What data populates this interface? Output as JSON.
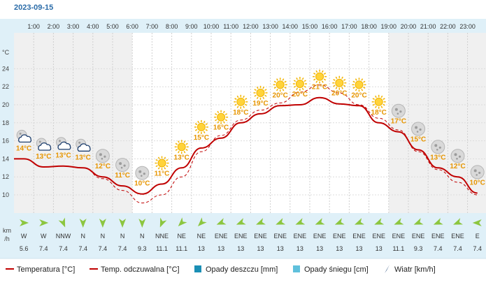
{
  "date": "2023-09-15",
  "colors": {
    "temperature": "#c00000",
    "feels_like": "#c00000",
    "label": "#e69500",
    "wind_arrow": "#8cc63f",
    "panel": "#dff0f8",
    "rain": "#1a8fb5",
    "snow": "#5fc0dc",
    "wind_legend": "#2c4f7c"
  },
  "chart_data": {
    "type": "line",
    "x": [
      "1:00",
      "2:00",
      "3:00",
      "4:00",
      "5:00",
      "6:00",
      "7:00",
      "8:00",
      "9:00",
      "10:00",
      "11:00",
      "12:00",
      "13:00",
      "14:00",
      "15:00",
      "16:00",
      "17:00",
      "18:00",
      "19:00",
      "20:00",
      "21:00",
      "22:00",
      "23:00"
    ],
    "ylabel": "°C",
    "yticks": [
      10,
      12,
      14,
      16,
      18,
      20,
      22,
      24
    ],
    "ylim": [
      8,
      26
    ],
    "temperature": [
      14,
      13.1,
      13.2,
      13,
      12,
      11,
      10.1,
      11.2,
      13,
      15.2,
      16.3,
      18,
      19,
      19.9,
      20,
      20.8,
      20.1,
      19.9,
      18,
      17,
      15,
      13,
      12,
      10.2
    ],
    "feels_like": [
      14,
      13.1,
      13.2,
      13,
      11.8,
      10.5,
      9.1,
      10,
      12,
      14.8,
      16.6,
      18.3,
      19.4,
      20.2,
      21.4,
      22.2,
      21.3,
      20,
      18.5,
      17.2,
      14.8,
      12.8,
      11.4,
      10
    ],
    "labels": [
      "14°C",
      "13°C",
      "13°C",
      "13°C",
      "12°C",
      "11°C",
      "10°C",
      "11°C",
      "13°C",
      "15°C",
      "16°C",
      "18°C",
      "19°C",
      "20°C",
      "20°C",
      "21°C",
      "20°C",
      "20°C",
      "18°C",
      "17°C",
      "15°C",
      "13°C",
      "12°C",
      "10°C"
    ],
    "icons": [
      "partly-cloudy-night-icon",
      "partly-cloudy-night-icon",
      "partly-cloudy-night-icon",
      "partly-cloudy-night-icon",
      "moon-icon",
      "moon-icon",
      "moon-icon",
      "sun-icon",
      "sun-icon",
      "sun-icon",
      "sun-icon",
      "sun-icon",
      "sun-icon",
      "sun-icon",
      "sun-icon",
      "sun-icon",
      "sun-icon",
      "sun-icon",
      "sun-icon",
      "moon-icon",
      "moon-icon",
      "moon-icon",
      "moon-icon",
      "moon-icon"
    ],
    "wind_dir": [
      "W",
      "W",
      "NNW",
      "N",
      "N",
      "N",
      "N",
      "NNE",
      "NE",
      "NE",
      "ENE",
      "ENE",
      "ENE",
      "ENE",
      "ENE",
      "ENE",
      "ENE",
      "ENE",
      "ENE",
      "ENE",
      "ENE",
      "ENE",
      "ENE",
      "E"
    ],
    "wind_deg": [
      270,
      270,
      337.5,
      0,
      0,
      0,
      0,
      22.5,
      45,
      45,
      67.5,
      67.5,
      67.5,
      67.5,
      67.5,
      67.5,
      67.5,
      67.5,
      67.5,
      67.5,
      67.5,
      67.5,
      67.5,
      90
    ],
    "wind_speed": [
      "5.6",
      "7.4",
      "7.4",
      "7.4",
      "7.4",
      "7.4",
      "9.3",
      "11.1",
      "11.1",
      "13",
      "13",
      "13",
      "13",
      "13",
      "13",
      "13",
      "13",
      "13",
      "13",
      "11.1",
      "9.3",
      "7.4",
      "7.4",
      "7.4"
    ],
    "wind_unit": "km\n/h"
  },
  "legend": [
    {
      "label": "Temperatura [°C]",
      "type": "line"
    },
    {
      "label": "Temp. odczuwalna [°C]",
      "type": "line"
    },
    {
      "label": "Opady deszczu [mm]",
      "type": "rain"
    },
    {
      "label": "Opady śniegu [cm]",
      "type": "snow"
    },
    {
      "label": "Wiatr [km/h]",
      "type": "wind"
    }
  ]
}
